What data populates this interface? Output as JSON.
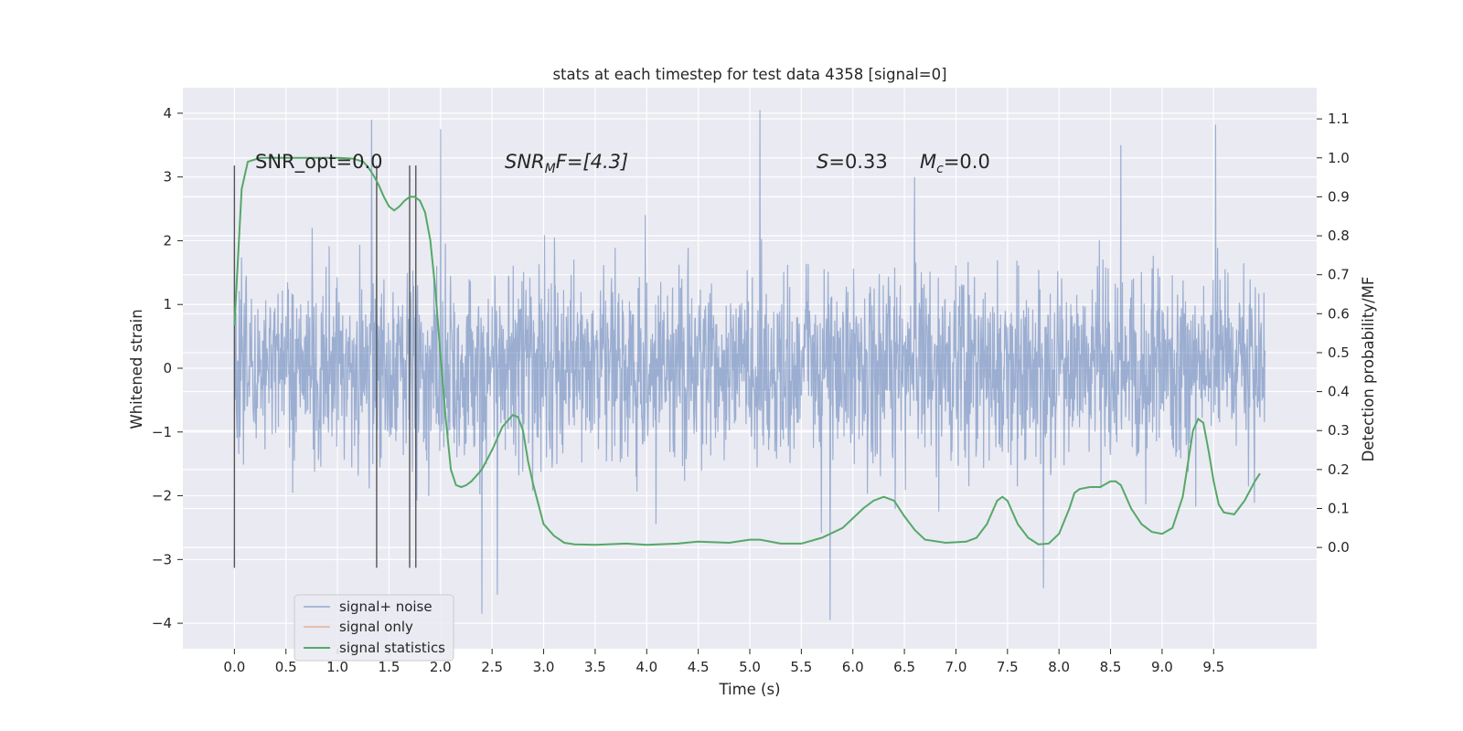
{
  "chart_data": {
    "type": "line",
    "title": "stats at each timestep for test data 4358 [signal=0]",
    "xlabel": "Time (s)",
    "ylabel": "Whitened strain",
    "ylabel_right": "Detection probability/MF",
    "xlim": [
      -0.5,
      10.5
    ],
    "ylim": [
      -4.4,
      4.4
    ],
    "ylim_right": [
      -0.26,
      1.18
    ],
    "x_ticks": [
      "0.0",
      "0.5",
      "1.0",
      "1.5",
      "2.0",
      "2.5",
      "3.0",
      "3.5",
      "4.0",
      "4.5",
      "5.0",
      "5.5",
      "6.0",
      "6.5",
      "7.0",
      "7.5",
      "8.0",
      "8.5",
      "9.0",
      "9.5"
    ],
    "y_ticks": [
      "4",
      "3",
      "2",
      "1",
      "0",
      "−1",
      "−2",
      "−3",
      "−4"
    ],
    "y_ticks_right": [
      "1.1",
      "1.0",
      "0.9",
      "0.8",
      "0.7",
      "0.6",
      "0.5",
      "0.4",
      "0.3",
      "0.2",
      "0.1",
      "0.0"
    ],
    "grid": true,
    "legend_position": "lower-left",
    "annotations": {
      "snr_opt": "SNR_opt=0.0",
      "snr_mf_name": "SNR",
      "snr_mf_sub": "M",
      "snr_mf_value": "F=[4.3]",
      "s_name": "S",
      "s_value": "=0.33",
      "mc_name": "M",
      "mc_sub": "c",
      "mc_value": "=0.0"
    },
    "vlines_x": [
      0.0,
      1.38,
      1.7,
      1.76
    ],
    "noise_band": {
      "x_range": [
        0.0,
        10.0
      ],
      "typical_range": [
        -2.0,
        2.0
      ],
      "peaks": [
        4.05,
        -3.95
      ]
    },
    "series": [
      {
        "name": "signal+ noise",
        "color": "#4c72b0"
      },
      {
        "name": "signal only",
        "color": "#dd8452",
        "values": []
      },
      {
        "name": "signal statistics",
        "color": "#55a868",
        "axis": "right",
        "x": [
          0.0,
          0.07,
          0.13,
          0.25,
          0.5,
          0.75,
          1.0,
          1.15,
          1.25,
          1.3,
          1.35,
          1.4,
          1.45,
          1.5,
          1.55,
          1.6,
          1.65,
          1.7,
          1.75,
          1.8,
          1.85,
          1.9,
          1.95,
          2.0,
          2.05,
          2.1,
          2.15,
          2.2,
          2.25,
          2.3,
          2.35,
          2.4,
          2.5,
          2.6,
          2.7,
          2.75,
          2.8,
          2.85,
          2.9,
          2.95,
          3.0,
          3.1,
          3.2,
          3.3,
          3.5,
          3.8,
          4.0,
          4.3,
          4.5,
          4.8,
          5.0,
          5.1,
          5.3,
          5.5,
          5.7,
          5.9,
          6.1,
          6.2,
          6.3,
          6.4,
          6.5,
          6.6,
          6.7,
          6.9,
          7.1,
          7.2,
          7.3,
          7.4,
          7.45,
          7.5,
          7.6,
          7.7,
          7.8,
          7.9,
          8.0,
          8.1,
          8.15,
          8.2,
          8.3,
          8.4,
          8.5,
          8.55,
          8.6,
          8.7,
          8.8,
          8.9,
          9.0,
          9.1,
          9.2,
          9.3,
          9.35,
          9.4,
          9.45,
          9.5,
          9.55,
          9.6,
          9.7,
          9.8,
          9.9,
          9.95
        ],
        "values": [
          0.57,
          0.92,
          0.99,
          1.0,
          1.0,
          1.0,
          1.0,
          0.998,
          0.99,
          0.975,
          0.955,
          0.93,
          0.9,
          0.875,
          0.865,
          0.875,
          0.89,
          0.9,
          0.9,
          0.89,
          0.86,
          0.79,
          0.66,
          0.49,
          0.33,
          0.2,
          0.16,
          0.155,
          0.16,
          0.17,
          0.185,
          0.2,
          0.25,
          0.31,
          0.34,
          0.335,
          0.3,
          0.22,
          0.16,
          0.11,
          0.06,
          0.03,
          0.012,
          0.008,
          0.007,
          0.01,
          0.007,
          0.01,
          0.015,
          0.012,
          0.02,
          0.02,
          0.01,
          0.01,
          0.025,
          0.05,
          0.1,
          0.12,
          0.13,
          0.12,
          0.08,
          0.045,
          0.02,
          0.012,
          0.015,
          0.025,
          0.06,
          0.12,
          0.13,
          0.12,
          0.06,
          0.025,
          0.008,
          0.01,
          0.035,
          0.1,
          0.14,
          0.15,
          0.155,
          0.155,
          0.17,
          0.17,
          0.16,
          0.1,
          0.06,
          0.04,
          0.035,
          0.05,
          0.13,
          0.3,
          0.33,
          0.32,
          0.25,
          0.17,
          0.11,
          0.09,
          0.085,
          0.12,
          0.17,
          0.19
        ]
      }
    ]
  }
}
